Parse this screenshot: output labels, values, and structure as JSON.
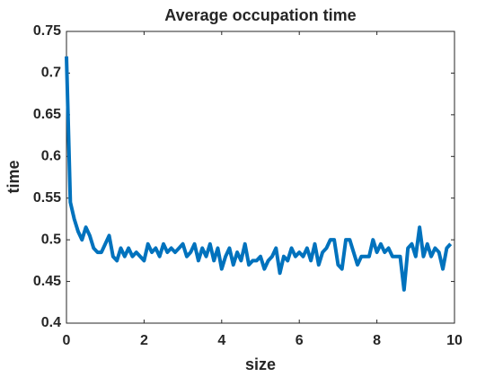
{
  "chart_data": {
    "type": "line",
    "title": "Average occupation time",
    "x_label": "size",
    "y_label": "time",
    "x": [
      0,
      0.1,
      0.2,
      0.3,
      0.4,
      0.5,
      0.6,
      0.7,
      0.8,
      0.9,
      1,
      1.1,
      1.2,
      1.3,
      1.4,
      1.5,
      1.6,
      1.7,
      1.8,
      1.9,
      2,
      2.1,
      2.2,
      2.3,
      2.4,
      2.5,
      2.6,
      2.7,
      2.8,
      2.9,
      3,
      3.1,
      3.2,
      3.3,
      3.4,
      3.5,
      3.6,
      3.7,
      3.8,
      3.9,
      4,
      4.1,
      4.2,
      4.3,
      4.4,
      4.5,
      4.6,
      4.7,
      4.8,
      4.9,
      5,
      5.1,
      5.2,
      5.3,
      5.4,
      5.5,
      5.6,
      5.7,
      5.8,
      5.9,
      6,
      6.1,
      6.2,
      6.3,
      6.4,
      6.5,
      6.6,
      6.7,
      6.8,
      6.9,
      7,
      7.1,
      7.2,
      7.3,
      7.4,
      7.5,
      7.6,
      7.7,
      7.8,
      7.9,
      8,
      8.1,
      8.2,
      8.3,
      8.4,
      8.5,
      8.6,
      8.7,
      8.8,
      8.9,
      9,
      9.1,
      9.2,
      9.3,
      9.4,
      9.5,
      9.6,
      9.7,
      9.8,
      9.9
    ],
    "series": [
      {
        "color": "#0072bd",
        "values": [
          0.72,
          0.545,
          0.525,
          0.51,
          0.5,
          0.515,
          0.505,
          0.49,
          0.485,
          0.485,
          0.495,
          0.505,
          0.48,
          0.475,
          0.49,
          0.48,
          0.49,
          0.48,
          0.485,
          0.48,
          0.475,
          0.495,
          0.485,
          0.49,
          0.48,
          0.495,
          0.485,
          0.49,
          0.485,
          0.49,
          0.495,
          0.48,
          0.485,
          0.495,
          0.475,
          0.49,
          0.48,
          0.495,
          0.475,
          0.49,
          0.465,
          0.48,
          0.49,
          0.47,
          0.485,
          0.475,
          0.495,
          0.47,
          0.475,
          0.475,
          0.48,
          0.465,
          0.475,
          0.48,
          0.49,
          0.46,
          0.48,
          0.475,
          0.49,
          0.48,
          0.485,
          0.48,
          0.49,
          0.475,
          0.495,
          0.47,
          0.485,
          0.49,
          0.5,
          0.5,
          0.47,
          0.465,
          0.5,
          0.5,
          0.485,
          0.47,
          0.48,
          0.48,
          0.48,
          0.5,
          0.485,
          0.495,
          0.485,
          0.49,
          0.48,
          0.48,
          0.48,
          0.44,
          0.49,
          0.495,
          0.48,
          0.515,
          0.48,
          0.495,
          0.48,
          0.49,
          0.485,
          0.465,
          0.49,
          0.495
        ]
      }
    ],
    "xlim": [
      0,
      10
    ],
    "xticks": [
      0,
      2,
      4,
      6,
      8,
      10
    ],
    "ylim": [
      0.4,
      0.75
    ],
    "yticks": [
      0.4,
      0.45,
      0.5,
      0.55,
      0.6,
      0.65,
      0.7,
      0.75
    ]
  }
}
